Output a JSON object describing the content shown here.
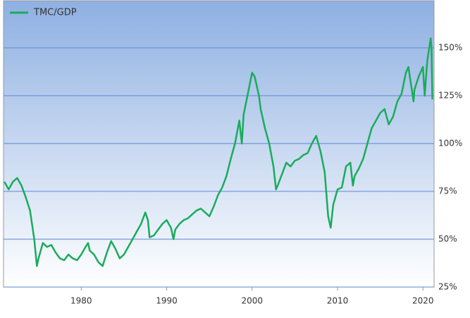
{
  "chart_data": {
    "type": "line",
    "series": [
      {
        "name": "TMC/GDP",
        "color": "#1aab5c",
        "x": [
          1971.0,
          1971.5,
          1972.0,
          1972.5,
          1973.0,
          1973.5,
          1974.0,
          1974.5,
          1974.8,
          1975.0,
          1975.5,
          1976.0,
          1976.5,
          1977.0,
          1977.5,
          1978.0,
          1978.5,
          1979.0,
          1979.5,
          1980.0,
          1980.5,
          1980.8,
          1981.0,
          1981.5,
          1982.0,
          1982.5,
          1983.0,
          1983.5,
          1984.0,
          1984.5,
          1985.0,
          1985.5,
          1986.0,
          1986.5,
          1987.0,
          1987.5,
          1987.8,
          1988.0,
          1988.5,
          1989.0,
          1989.5,
          1990.0,
          1990.5,
          1990.8,
          1991.0,
          1991.5,
          1992.0,
          1992.5,
          1993.0,
          1993.5,
          1994.0,
          1994.5,
          1995.0,
          1995.5,
          1996.0,
          1996.5,
          1997.0,
          1997.5,
          1998.0,
          1998.5,
          1998.8,
          1999.0,
          1999.5,
          2000.0,
          2000.3,
          2000.8,
          2001.0,
          2001.5,
          2002.0,
          2002.5,
          2002.8,
          2003.0,
          2003.5,
          2004.0,
          2004.5,
          2005.0,
          2005.5,
          2006.0,
          2006.5,
          2007.0,
          2007.5,
          2008.0,
          2008.5,
          2008.9,
          2009.2,
          2009.5,
          2010.0,
          2010.5,
          2011.0,
          2011.5,
          2011.8,
          2012.0,
          2012.5,
          2013.0,
          2013.5,
          2014.0,
          2014.5,
          2015.0,
          2015.5,
          2016.0,
          2016.5,
          2017.0,
          2017.5,
          2018.0,
          2018.3,
          2018.9,
          2019.0,
          2019.5,
          2020.0,
          2020.2,
          2020.5,
          2020.9,
          2021.0,
          2021.1
        ],
        "values": [
          80,
          76,
          80,
          82,
          78,
          72,
          65,
          50,
          36,
          40,
          48,
          46,
          47,
          43,
          40,
          39,
          42,
          40,
          39,
          42,
          46,
          48,
          44,
          42,
          38,
          36,
          43,
          49,
          45,
          40,
          42,
          46,
          50,
          54,
          58,
          64,
          60,
          51,
          52,
          55,
          58,
          60,
          56,
          50,
          55,
          58,
          60,
          61,
          63,
          65,
          66,
          64,
          62,
          67,
          73,
          77,
          83,
          92,
          100,
          112,
          100,
          115,
          126,
          137,
          135,
          125,
          118,
          108,
          100,
          88,
          76,
          78,
          84,
          90,
          88,
          91,
          92,
          94,
          95,
          100,
          104,
          96,
          85,
          62,
          56,
          68,
          76,
          77,
          88,
          90,
          78,
          83,
          87,
          92,
          100,
          108,
          112,
          116,
          118,
          110,
          114,
          122,
          126,
          137,
          140,
          122,
          128,
          135,
          140,
          125,
          143,
          155,
          150,
          123
        ]
      }
    ],
    "xlim": [
      1970.9,
      2021.3
    ],
    "xticks": [
      1980,
      1990,
      2000,
      2010,
      2020
    ],
    "ylim": [
      25,
      175
    ],
    "yticks": [
      {
        "value": 25,
        "label": "25%"
      },
      {
        "value": 50,
        "label": "50%"
      },
      {
        "value": 75,
        "label": "75%"
      },
      {
        "value": 100,
        "label": "100%"
      },
      {
        "value": 125,
        "label": "125%"
      },
      {
        "value": 150,
        "label": "150%"
      }
    ],
    "grid": true
  }
}
